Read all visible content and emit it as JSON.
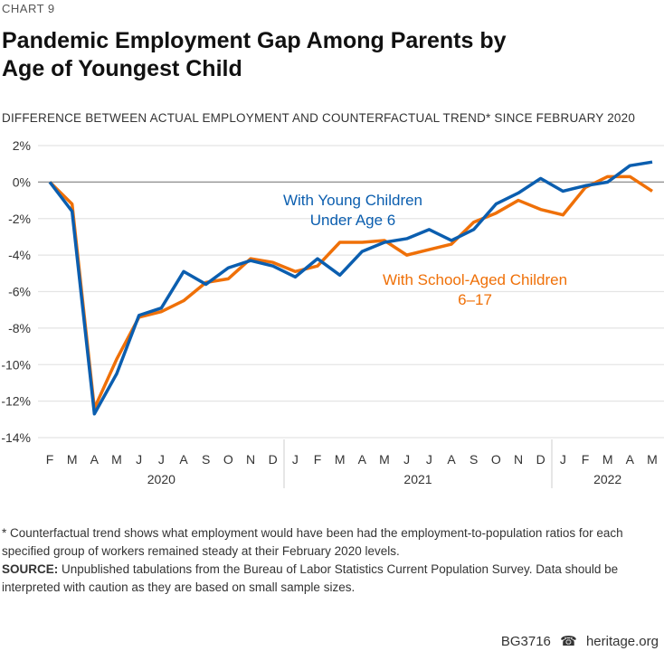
{
  "kicker": "CHART 9",
  "title_line1": "Pandemic Employment Gap Among Parents by",
  "title_line2": "Age of Youngest Child",
  "subtitle": "DIFFERENCE BETWEEN ACTUAL EMPLOYMENT AND COUNTERFACTUAL TREND* SINCE FEBRUARY 2020",
  "footnote": "* Counterfactual trend shows what employment would have been had the employment-to-population ratios for each specified group of workers remained steady at their February 2020 levels.",
  "source_label": "SOURCE:",
  "source_text": " Unpublished tabulations from the Bureau of Labor Statistics Current Population Survey. Data should be interpreted with caution as they are based on small sample sizes.",
  "footer": {
    "code": "BG3716",
    "icon": "bell-icon",
    "site": "heritage.org"
  },
  "chart_data": {
    "type": "line",
    "title": "Pandemic Employment Gap Among Parents by Age of Youngest Child",
    "ylabel": "Difference between actual employment and counterfactual trend (%)",
    "ylim": [
      -14,
      2
    ],
    "yticks": [
      2,
      0,
      -2,
      -4,
      -6,
      -8,
      -10,
      -12,
      -14
    ],
    "ytick_labels": [
      "2%",
      "0%",
      "-2%",
      "-4%",
      "-6%",
      "-8%",
      "-10%",
      "-12%",
      "-14%"
    ],
    "x": [
      "F",
      "M",
      "A",
      "M",
      "J",
      "J",
      "A",
      "S",
      "O",
      "N",
      "D",
      "J",
      "F",
      "M",
      "A",
      "M",
      "J",
      "J",
      "A",
      "S",
      "O",
      "N",
      "D",
      "J",
      "F",
      "M",
      "A",
      "M"
    ],
    "years": [
      {
        "label": "2020",
        "start": 0,
        "end": 10
      },
      {
        "label": "2021",
        "start": 11,
        "end": 22
      },
      {
        "label": "2022",
        "start": 23,
        "end": 27
      }
    ],
    "grid": true,
    "series": [
      {
        "name": "With Young Children Under Age 6",
        "label_lines": [
          "With Young Children",
          "Under Age 6"
        ],
        "color": "#0b5eaf",
        "values": [
          0,
          -1.6,
          -12.7,
          -10.5,
          -7.3,
          -6.9,
          -4.9,
          -5.6,
          -4.7,
          -4.3,
          -4.6,
          -5.2,
          -4.2,
          -5.1,
          -3.8,
          -3.3,
          -3.1,
          -2.6,
          -3.2,
          -2.6,
          -1.2,
          -0.6,
          0.2,
          -0.5,
          -0.2,
          0,
          0.9,
          1.1
        ]
      },
      {
        "name": "With School-Aged Children 6–17",
        "label_lines": [
          "With School-Aged Children",
          "6–17"
        ],
        "color": "#ef7008",
        "values": [
          0,
          -1.2,
          -12.4,
          -9.7,
          -7.4,
          -7.1,
          -6.5,
          -5.5,
          -5.3,
          -4.2,
          -4.4,
          -4.9,
          -4.6,
          -3.3,
          -3.3,
          -3.2,
          -4.0,
          -3.7,
          -3.4,
          -2.2,
          -1.7,
          -1.0,
          -1.5,
          -1.8,
          -0.3,
          0.3,
          0.3,
          -0.5
        ]
      }
    ]
  }
}
